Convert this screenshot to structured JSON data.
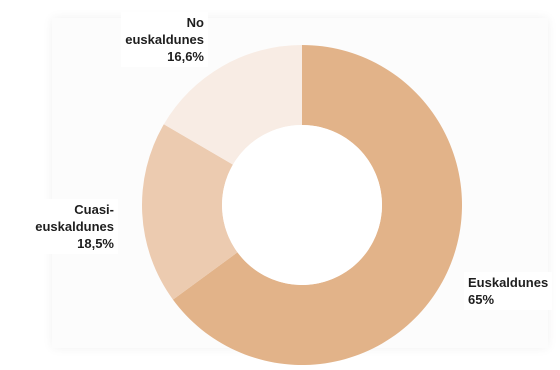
{
  "chart_data": {
    "type": "pie",
    "variant": "donut",
    "slices": [
      {
        "label_lines": [
          "Euskaldunes"
        ],
        "value_text": "65%",
        "value": 65.0,
        "color": "#e2b389"
      },
      {
        "label_lines": [
          "Cuasi-",
          "euskaldunes"
        ],
        "value_text": "18,5%",
        "value": 18.5,
        "color": "#eccbb0"
      },
      {
        "label_lines": [
          "No",
          "euskaldunes"
        ],
        "value_text": "16,6%",
        "value": 16.6,
        "color": "#f8ece4"
      }
    ],
    "start_angle_deg": 0,
    "direction": "clockwise",
    "legend": "none"
  }
}
